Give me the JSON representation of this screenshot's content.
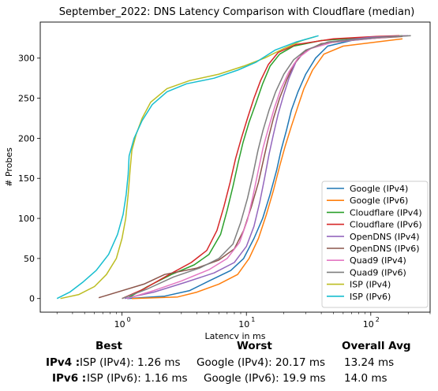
{
  "chart_data": {
    "type": "line",
    "title": "September_2022: DNS Latency Comparison with Cloudflare (median)",
    "xlabel": "Latency in ms",
    "ylabel": "# Probes",
    "xscale": "log",
    "xlim": [
      0.22,
      300
    ],
    "ylim": [
      -17,
      345
    ],
    "x_ticks": [
      {
        "value": 1,
        "label": "10",
        "exp": "0"
      },
      {
        "value": 10,
        "label": "10",
        "exp": "1"
      },
      {
        "value": 100,
        "label": "10",
        "exp": "2"
      }
    ],
    "y_ticks": [
      0,
      50,
      100,
      150,
      200,
      250,
      300
    ],
    "legend_position": "lower-right",
    "series": [
      {
        "name": "Google (IPv4)",
        "color": "#1f77b4",
        "points": [
          [
            1.1,
            0
          ],
          [
            2.2,
            3
          ],
          [
            3.5,
            10
          ],
          [
            5,
            22
          ],
          [
            7.5,
            35
          ],
          [
            9.5,
            50
          ],
          [
            11.5,
            75
          ],
          [
            13.5,
            100
          ],
          [
            15.5,
            130
          ],
          [
            17.5,
            160
          ],
          [
            19,
            185
          ],
          [
            21,
            210
          ],
          [
            23,
            235
          ],
          [
            26,
            258
          ],
          [
            30,
            280
          ],
          [
            36,
            300
          ],
          [
            45,
            315
          ],
          [
            70,
            322
          ],
          [
            130,
            326
          ],
          [
            190,
            328
          ]
        ]
      },
      {
        "name": "Google (IPv6)",
        "color": "#ff7f0e",
        "points": [
          [
            1.2,
            0
          ],
          [
            2.8,
            2
          ],
          [
            4,
            8
          ],
          [
            6,
            18
          ],
          [
            8.5,
            30
          ],
          [
            10.5,
            50
          ],
          [
            12.5,
            75
          ],
          [
            14.5,
            105
          ],
          [
            16.5,
            135
          ],
          [
            18.5,
            165
          ],
          [
            20.5,
            190
          ],
          [
            23,
            215
          ],
          [
            26,
            240
          ],
          [
            29,
            262
          ],
          [
            34,
            285
          ],
          [
            42,
            305
          ],
          [
            60,
            315
          ],
          [
            110,
            320
          ],
          [
            180,
            324
          ]
        ]
      },
      {
        "name": "Cloudflare (IPv4)",
        "color": "#2ca02c",
        "points": [
          [
            1.1,
            0
          ],
          [
            1.6,
            15
          ],
          [
            2.5,
            30
          ],
          [
            3.8,
            42
          ],
          [
            5,
            55
          ],
          [
            6.2,
            80
          ],
          [
            7,
            110
          ],
          [
            7.8,
            140
          ],
          [
            8.6,
            170
          ],
          [
            9.4,
            195
          ],
          [
            10.5,
            220
          ],
          [
            12,
            245
          ],
          [
            13.5,
            268
          ],
          [
            15.5,
            290
          ],
          [
            18.5,
            305
          ],
          [
            24,
            315
          ],
          [
            40,
            322
          ],
          [
            100,
            326
          ],
          [
            180,
            328
          ]
        ]
      },
      {
        "name": "Cloudflare (IPv6)",
        "color": "#d62728",
        "points": [
          [
            1.0,
            0
          ],
          [
            1.5,
            12
          ],
          [
            2.4,
            30
          ],
          [
            3.6,
            45
          ],
          [
            4.8,
            60
          ],
          [
            5.8,
            85
          ],
          [
            6.6,
            115
          ],
          [
            7.4,
            145
          ],
          [
            8.2,
            175
          ],
          [
            9.1,
            200
          ],
          [
            10.2,
            225
          ],
          [
            11.5,
            250
          ],
          [
            13,
            272
          ],
          [
            15,
            292
          ],
          [
            18,
            307
          ],
          [
            25,
            317
          ],
          [
            50,
            324
          ],
          [
            110,
            327
          ],
          [
            170,
            328
          ]
        ]
      },
      {
        "name": "OpenDNS (IPv4)",
        "color": "#9467bd",
        "points": [
          [
            1.05,
            0
          ],
          [
            1.8,
            8
          ],
          [
            3.2,
            20
          ],
          [
            5.5,
            32
          ],
          [
            8,
            45
          ],
          [
            10,
            65
          ],
          [
            11.5,
            90
          ],
          [
            12.8,
            120
          ],
          [
            14,
            150
          ],
          [
            15.2,
            180
          ],
          [
            16.5,
            205
          ],
          [
            18,
            230
          ],
          [
            20,
            255
          ],
          [
            22,
            275
          ],
          [
            25,
            295
          ],
          [
            30,
            310
          ],
          [
            45,
            320
          ],
          [
            100,
            326
          ],
          [
            200,
            328
          ]
        ]
      },
      {
        "name": "OpenDNS (IPv6)",
        "color": "#8c564b",
        "points": [
          [
            0.65,
            1
          ],
          [
            1.5,
            18
          ],
          [
            2.2,
            30
          ],
          [
            4,
            38
          ],
          [
            6,
            48
          ],
          [
            8,
            62
          ],
          [
            9.5,
            85
          ],
          [
            11,
            115
          ],
          [
            12.5,
            145
          ],
          [
            13.8,
            175
          ],
          [
            15,
            200
          ],
          [
            16.5,
            225
          ],
          [
            18.5,
            250
          ],
          [
            21,
            272
          ],
          [
            24,
            292
          ],
          [
            29,
            308
          ],
          [
            40,
            318
          ],
          [
            90,
            324
          ],
          [
            180,
            327
          ]
        ]
      },
      {
        "name": "Quad9 (IPv4)",
        "color": "#e377c2",
        "points": [
          [
            1.1,
            0
          ],
          [
            1.8,
            10
          ],
          [
            3,
            22
          ],
          [
            5,
            36
          ],
          [
            7,
            50
          ],
          [
            8.8,
            70
          ],
          [
            10.2,
            98
          ],
          [
            11.3,
            128
          ],
          [
            12.4,
            158
          ],
          [
            13.6,
            188
          ],
          [
            15,
            212
          ],
          [
            16.8,
            238
          ],
          [
            19,
            262
          ],
          [
            22,
            283
          ],
          [
            26,
            300
          ],
          [
            33,
            312
          ],
          [
            50,
            320
          ],
          [
            110,
            325
          ],
          [
            190,
            328
          ]
        ]
      },
      {
        "name": "Quad9 (IPv6)",
        "color": "#7f7f7f",
        "points": [
          [
            1.0,
            0
          ],
          [
            1.6,
            12
          ],
          [
            2.6,
            27
          ],
          [
            4.2,
            38
          ],
          [
            6,
            50
          ],
          [
            7.8,
            68
          ],
          [
            9,
            95
          ],
          [
            10.2,
            125
          ],
          [
            11.3,
            155
          ],
          [
            12.4,
            185
          ],
          [
            13.6,
            210
          ],
          [
            15.2,
            235
          ],
          [
            17.2,
            258
          ],
          [
            20,
            280
          ],
          [
            24,
            298
          ],
          [
            30,
            310
          ],
          [
            45,
            320
          ],
          [
            120,
            326
          ],
          [
            210,
            328
          ]
        ]
      },
      {
        "name": "ISP (IPv4)",
        "color": "#bcbd22",
        "points": [
          [
            0.32,
            0
          ],
          [
            0.45,
            5
          ],
          [
            0.6,
            15
          ],
          [
            0.75,
            30
          ],
          [
            0.9,
            50
          ],
          [
            1.0,
            75
          ],
          [
            1.07,
            100
          ],
          [
            1.12,
            130
          ],
          [
            1.16,
            160
          ],
          [
            1.2,
            185
          ],
          [
            1.3,
            205
          ],
          [
            1.45,
            225
          ],
          [
            1.7,
            245
          ],
          [
            2.3,
            262
          ],
          [
            3.5,
            272
          ],
          [
            6,
            280
          ],
          [
            9.5,
            290
          ],
          [
            14,
            300
          ],
          [
            20,
            312
          ],
          [
            28,
            322
          ],
          [
            36,
            327
          ]
        ]
      },
      {
        "name": "ISP (IPv6)",
        "color": "#17becf",
        "points": [
          [
            0.3,
            0
          ],
          [
            0.38,
            8
          ],
          [
            0.48,
            20
          ],
          [
            0.62,
            35
          ],
          [
            0.78,
            55
          ],
          [
            0.92,
            80
          ],
          [
            1.02,
            105
          ],
          [
            1.08,
            130
          ],
          [
            1.12,
            155
          ],
          [
            1.14,
            178
          ],
          [
            1.25,
            200
          ],
          [
            1.45,
            222
          ],
          [
            1.75,
            242
          ],
          [
            2.3,
            258
          ],
          [
            3.3,
            268
          ],
          [
            5.5,
            275
          ],
          [
            8.5,
            285
          ],
          [
            12,
            295
          ],
          [
            17,
            310
          ],
          [
            25,
            320
          ],
          [
            38,
            328
          ]
        ]
      }
    ]
  },
  "summary": {
    "headers": {
      "best": "Best",
      "worst": "Worst",
      "avg": "Overall Avg"
    },
    "rows": [
      {
        "label": "IPv4 :",
        "best": "ISP (IPv4): 1.26 ms",
        "worst": "Google (IPv4): 20.17 ms",
        "avg": "13.24 ms"
      },
      {
        "label": "IPv6 :",
        "best": "ISP (IPv6): 1.16 ms",
        "worst": "Google (IPv6): 19.9 ms",
        "avg": "14.0 ms"
      }
    ]
  }
}
